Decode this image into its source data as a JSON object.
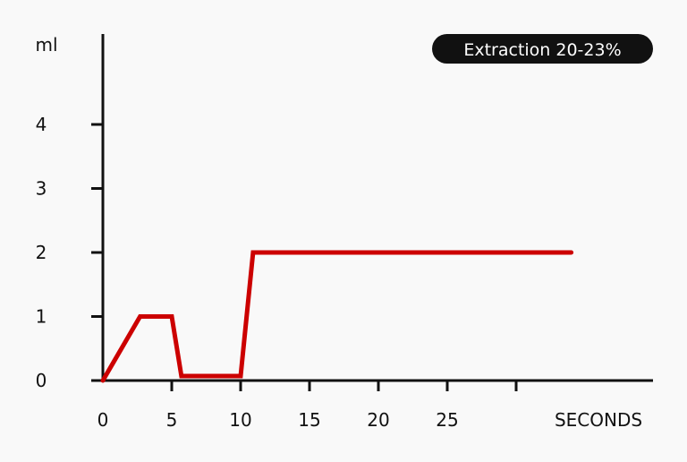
{
  "chart_data": {
    "type": "line",
    "title": "",
    "ylabel": "ml",
    "xlabel": "SECONDS",
    "badge": "Extraction 20-23%",
    "x_ticks": [
      0,
      5,
      10,
      15,
      20,
      25,
      30
    ],
    "x_tick_labels": [
      "0",
      "5",
      "10",
      "15",
      "20",
      "25",
      ""
    ],
    "y_ticks": [
      0,
      1,
      2,
      3,
      4
    ],
    "y_tick_labels": [
      "0",
      "1",
      "2",
      "3",
      "4"
    ],
    "xlim": [
      0,
      40
    ],
    "ylim": [
      0,
      5.4
    ],
    "grid": false,
    "series": [
      {
        "name": "",
        "color": "#cc0000",
        "points": [
          {
            "x": 0,
            "y": 0
          },
          {
            "x": 2.7,
            "y": 1
          },
          {
            "x": 5,
            "y": 1
          },
          {
            "x": 5.7,
            "y": 0.07
          },
          {
            "x": 10,
            "y": 0.07
          },
          {
            "x": 10.9,
            "y": 2
          },
          {
            "x": 34,
            "y": 2
          }
        ]
      }
    ],
    "colors": {
      "axis": "#111111",
      "badge_bg": "#111111",
      "badge_text": "#ffffff"
    }
  }
}
